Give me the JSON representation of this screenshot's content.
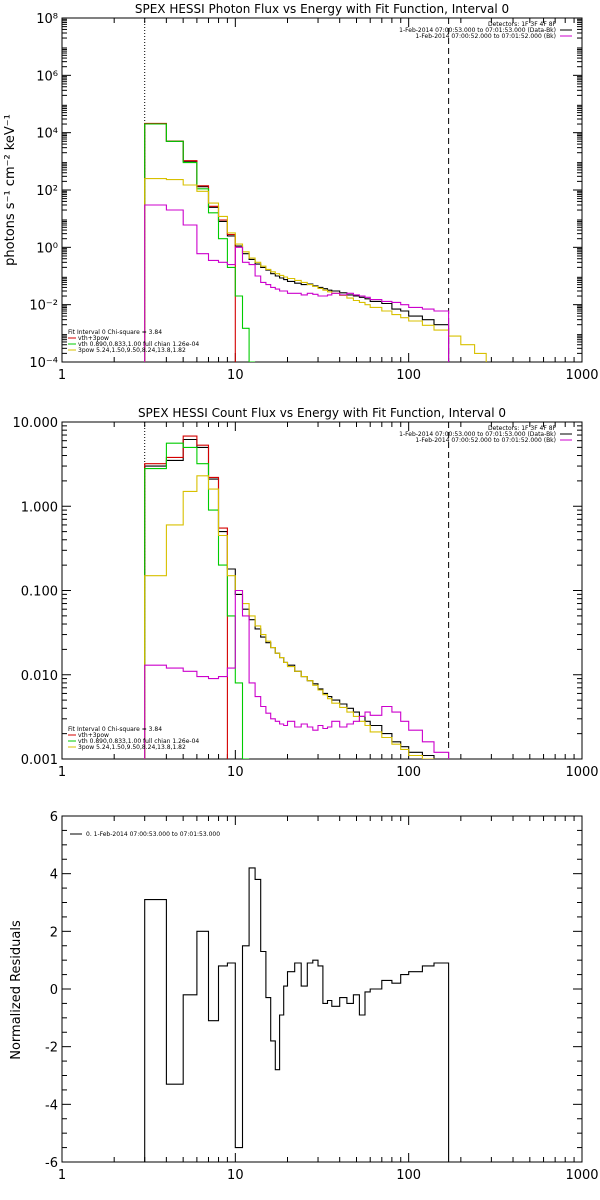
{
  "chart_data": [
    {
      "type": "line",
      "title": "SPEX HESSI Photon Flux vs Energy with Fit Function, Interval 0",
      "xlabel": "",
      "ylabel": "photons s⁻¹ cm⁻² keV⁻¹",
      "xscale": "log",
      "yscale": "log",
      "xlim": [
        1,
        1000
      ],
      "ylim": [
        0.0001,
        100000000
      ],
      "x_tick_labels": [
        "1",
        "10",
        "100",
        "1000"
      ],
      "y_tick_labels": [
        "10⁻⁴",
        "10⁻²",
        "10⁰",
        "10²",
        "10⁴",
        "10⁶",
        "10⁸"
      ],
      "vlines": [
        {
          "x": 3,
          "style": "dotted"
        },
        {
          "x": 170,
          "style": "dashed"
        }
      ],
      "legend_top": [
        "Detectors: 1F 3F 4F 8F",
        "1-Feb-2014 07:00:53.000 to 07:01:53.000 (Data-Bk)",
        "1-Feb-2014 07:00:52.000 to 07:01:52.000 (Bk)"
      ],
      "legend_bottom": [
        "Fit Interval 0   Chi-square = 3.84",
        "vth+3pow",
        "vth 0.890,0.833,1.00  full chian 1.26e-04",
        "3pow 5.24,1.50,9.50,8.24,13.8,1.82"
      ],
      "series": [
        {
          "name": "1-Feb-2014 07:00:53.000 to 07:01:53.000 (Data-Bk)",
          "color": "#000000",
          "edges": [
            3,
            4,
            5,
            6,
            7,
            8,
            9,
            10,
            11,
            12,
            13,
            14,
            15,
            16,
            17,
            18,
            19,
            20,
            22,
            24,
            26,
            28,
            30,
            32,
            34,
            36,
            40,
            44,
            48,
            52,
            56,
            60,
            70,
            80,
            90,
            100,
            120,
            140,
            170
          ],
          "values": [
            20000,
            5000,
            1000,
            130,
            25,
            8,
            2.5,
            1.1,
            0.6,
            0.38,
            0.26,
            0.2,
            0.16,
            0.12,
            0.1,
            0.085,
            0.075,
            0.065,
            0.056,
            0.05,
            0.052,
            0.045,
            0.04,
            0.036,
            0.032,
            0.03,
            0.026,
            0.022,
            0.02,
            0.018,
            0.016,
            0.013,
            0.011,
            0.007,
            0.006,
            0.004,
            0.003,
            0.002
          ]
        },
        {
          "name": "vth+3pow",
          "color": "#d40000",
          "edges": [
            3,
            4,
            5,
            6,
            7,
            8,
            9,
            10
          ],
          "values": [
            21000,
            5100,
            1050,
            140,
            27,
            9,
            2.8
          ]
        },
        {
          "name": "vth 0.890,0.833,1.00  full chian 1.26e-04",
          "color": "#00cc00",
          "edges": [
            3,
            4,
            5,
            6,
            7,
            8,
            9,
            10,
            11,
            12,
            13
          ],
          "values": [
            20000,
            5000,
            900,
            110,
            16,
            2,
            0.2,
            0.02,
            0.0015,
            0.0001
          ]
        },
        {
          "name": "3pow 5.24,1.50,9.50,8.24,13.8,1.82",
          "color": "#d8c000",
          "edges": [
            3,
            4,
            5,
            6,
            7,
            8,
            9,
            10,
            11,
            12,
            13,
            14,
            15,
            16,
            17,
            18,
            19,
            20,
            22,
            24,
            26,
            28,
            30,
            32,
            34,
            36,
            40,
            44,
            48,
            52,
            56,
            60,
            70,
            80,
            90,
            100,
            120,
            140,
            170,
            200,
            240,
            280
          ],
          "values": [
            250,
            230,
            150,
            90,
            35,
            12,
            3.2,
            1.3,
            0.7,
            0.42,
            0.3,
            0.22,
            0.17,
            0.14,
            0.12,
            0.105,
            0.092,
            0.082,
            0.07,
            0.06,
            0.05,
            0.043,
            0.037,
            0.032,
            0.028,
            0.025,
            0.021,
            0.017,
            0.014,
            0.012,
            0.01,
            0.008,
            0.006,
            0.0045,
            0.0035,
            0.0027,
            0.0019,
            0.0013,
            0.0008,
            0.0004,
            0.0002
          ]
        },
        {
          "name": "1-Feb-2014 07:00:52.000 to 07:01:52.000 (Bk)",
          "color": "#cc00cc",
          "edges": [
            3,
            4,
            5,
            6,
            7,
            8,
            9,
            10,
            11,
            12,
            13,
            14,
            15,
            16,
            17,
            18,
            19,
            20,
            22,
            24,
            26,
            28,
            30,
            32,
            34,
            36,
            40,
            44,
            48,
            52,
            56,
            60,
            70,
            80,
            90,
            100,
            120,
            140,
            170
          ],
          "values": [
            30,
            20,
            6,
            0.6,
            0.35,
            0.3,
            0.25,
            1.0,
            0.3,
            0.25,
            0.1,
            0.06,
            0.05,
            0.04,
            0.035,
            0.03,
            0.03,
            0.025,
            0.025,
            0.022,
            0.025,
            0.023,
            0.02,
            0.02,
            0.022,
            0.025,
            0.022,
            0.025,
            0.022,
            0.02,
            0.018,
            0.015,
            0.013,
            0.012,
            0.01,
            0.008,
            0.007,
            0.006
          ]
        }
      ]
    },
    {
      "type": "line",
      "title": "SPEX HESSI Count Flux vs Energy with Fit Function, Interval 0",
      "xlabel": "",
      "ylabel": "",
      "xscale": "log",
      "yscale": "log",
      "xlim": [
        1,
        1000
      ],
      "ylim": [
        0.001,
        10
      ],
      "x_tick_labels": [
        "1",
        "10",
        "100",
        "1000"
      ],
      "y_tick_labels": [
        "0.001",
        "0.010",
        "0.100",
        "1.000",
        "10.000"
      ],
      "vlines": [
        {
          "x": 3,
          "style": "dotted"
        },
        {
          "x": 170,
          "style": "dashed"
        }
      ],
      "legend_top": [
        "Detectors: 1F 3F 4F 8F",
        "1-Feb-2014 07:00:53.000 to 07:01:53.000 (Data-Bk)",
        "1-Feb-2014 07:00:52.000 to 07:01:52.000 (Bk)"
      ],
      "legend_bottom": [
        "Fit Interval 0   Chi-square = 3.84",
        "vth+3pow",
        "vth 0.890,0.833,1.00  full chian 1.26e-04",
        "3pow 5.24,1.50,9.50,8.24,13.8,1.82"
      ],
      "series": [
        {
          "name": "1-Feb-2014 07:00:53.000 to 07:01:53.000 (Data-Bk)",
          "color": "#000000",
          "edges": [
            3,
            4,
            5,
            6,
            7,
            8,
            9,
            10,
            11,
            12,
            13,
            14,
            15,
            16,
            17,
            18,
            19,
            20,
            22,
            24,
            26,
            28,
            30,
            32,
            34,
            36,
            40,
            44,
            48,
            52,
            56,
            60,
            70,
            80,
            90,
            100,
            120,
            140,
            170
          ],
          "values": [
            3.0,
            3.5,
            6.2,
            5.0,
            2.1,
            0.5,
            0.18,
            0.09,
            0.06,
            0.045,
            0.035,
            0.028,
            0.024,
            0.021,
            0.018,
            0.016,
            0.014,
            0.013,
            0.011,
            0.0095,
            0.0085,
            0.0078,
            0.0068,
            0.006,
            0.0055,
            0.005,
            0.0045,
            0.004,
            0.0036,
            0.0032,
            0.0028,
            0.0025,
            0.002,
            0.0016,
            0.0014,
            0.0012,
            0.0011,
            0.001
          ]
        },
        {
          "name": "vth+3pow",
          "color": "#d40000",
          "edges": [
            3,
            4,
            5,
            6,
            7,
            8,
            9
          ],
          "values": [
            3.2,
            3.8,
            6.8,
            5.3,
            2.2,
            0.55
          ]
        },
        {
          "name": "vth 0.890,0.833,1.00  full chian 1.26e-04",
          "color": "#00cc00",
          "edges": [
            3,
            4,
            5,
            6,
            7,
            8,
            9,
            10,
            11,
            12
          ],
          "values": [
            2.8,
            5.6,
            5.0,
            3.2,
            0.9,
            0.2,
            0.05,
            0.008,
            0.001
          ]
        },
        {
          "name": "3pow 5.24,1.50,9.50,8.24,13.8,1.82",
          "color": "#d8c000",
          "edges": [
            3,
            4,
            5,
            6,
            7,
            8,
            9,
            10,
            11,
            12,
            13,
            14,
            15,
            16,
            17,
            18,
            19,
            20,
            22,
            24,
            26,
            28,
            30,
            32,
            34,
            36,
            40,
            44,
            48,
            52,
            56,
            60,
            70,
            80,
            90,
            100,
            120,
            140,
            170
          ],
          "values": [
            0.15,
            0.6,
            1.5,
            2.3,
            1.6,
            0.45,
            0.15,
            0.1,
            0.07,
            0.05,
            0.038,
            0.03,
            0.025,
            0.021,
            0.018,
            0.016,
            0.014,
            0.0125,
            0.011,
            0.0095,
            0.0085,
            0.0075,
            0.0066,
            0.0058,
            0.0052,
            0.0046,
            0.0041,
            0.0036,
            0.0032,
            0.0028,
            0.0025,
            0.0021,
            0.0018,
            0.0015,
            0.0013,
            0.0011,
            0.001,
            0.0009
          ]
        },
        {
          "name": "1-Feb-2014 07:00:52.000 to 07:01:52.000 (Bk)",
          "color": "#cc00cc",
          "edges": [
            3,
            4,
            5,
            6,
            7,
            8,
            9,
            10,
            11,
            12,
            13,
            14,
            15,
            16,
            17,
            18,
            19,
            20,
            22,
            24,
            26,
            28,
            30,
            32,
            34,
            36,
            40,
            44,
            48,
            52,
            56,
            60,
            70,
            80,
            90,
            100,
            120,
            140,
            170
          ],
          "values": [
            0.013,
            0.012,
            0.011,
            0.0095,
            0.009,
            0.0095,
            0.012,
            0.1,
            0.05,
            0.008,
            0.0055,
            0.0042,
            0.0035,
            0.003,
            0.0028,
            0.0026,
            0.0025,
            0.0028,
            0.0024,
            0.0026,
            0.0024,
            0.0022,
            0.0025,
            0.0023,
            0.0024,
            0.0028,
            0.0024,
            0.0026,
            0.0028,
            0.0032,
            0.0036,
            0.0033,
            0.0042,
            0.0036,
            0.0028,
            0.0022,
            0.0016,
            0.0012
          ]
        }
      ]
    },
    {
      "type": "line",
      "title": "",
      "xlabel": "",
      "ylabel": "Normalized Residuals",
      "xscale": "log",
      "yscale": "linear",
      "xlim": [
        1,
        1000
      ],
      "ylim": [
        -6,
        6
      ],
      "x_tick_labels": [
        "1",
        "10",
        "100",
        "1000"
      ],
      "y_tick_labels": [
        "-6",
        "-4",
        "-2",
        "0",
        "2",
        "4",
        "6"
      ],
      "legend_top": [
        "0.  1-Feb-2014 07:00:53.000 to 07:01:53.000"
      ],
      "series": [
        {
          "name": "0.  1-Feb-2014 07:00:53.000 to 07:01:53.000",
          "color": "#000000",
          "edges": [
            3,
            4,
            5,
            6,
            7,
            8,
            9,
            10,
            11,
            12,
            13,
            14,
            15,
            16,
            17,
            18,
            19,
            20,
            22,
            24,
            26,
            28,
            30,
            32,
            34,
            36,
            40,
            44,
            48,
            52,
            56,
            60,
            70,
            80,
            90,
            100,
            120,
            140,
            170
          ],
          "values": [
            3.1,
            -3.3,
            -0.2,
            2.0,
            -1.1,
            0.8,
            0.9,
            -5.5,
            1.5,
            4.2,
            3.8,
            1.3,
            -0.3,
            -1.8,
            -2.8,
            -0.9,
            0.1,
            0.6,
            0.9,
            0.1,
            0.9,
            1.0,
            0.8,
            -0.5,
            -0.4,
            -0.6,
            -0.3,
            -0.5,
            -0.2,
            -0.9,
            -0.1,
            0.0,
            0.3,
            0.2,
            0.5,
            0.6,
            0.8,
            0.9
          ]
        }
      ]
    }
  ]
}
